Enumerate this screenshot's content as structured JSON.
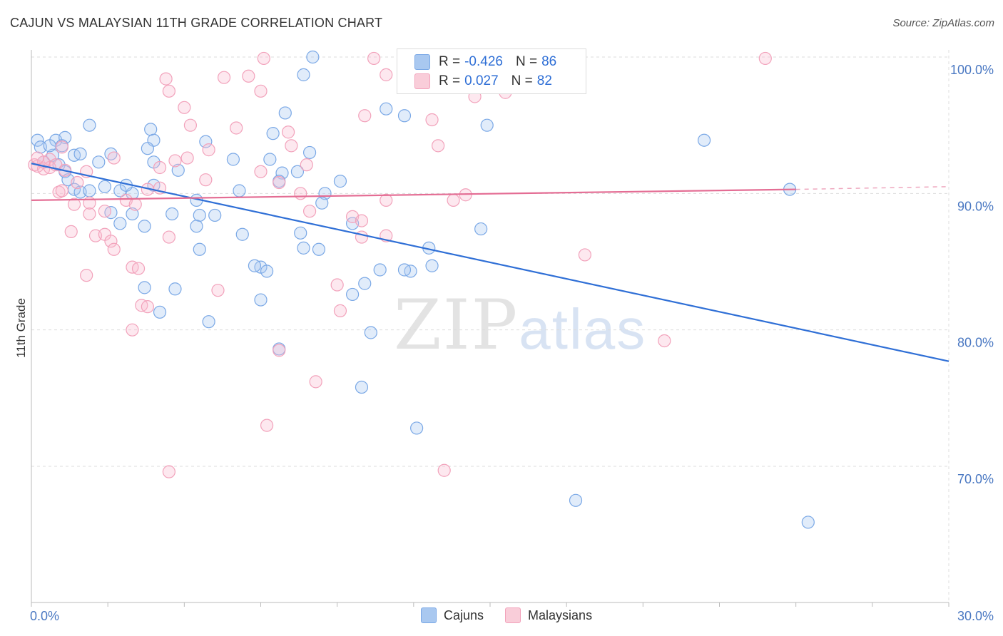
{
  "title": "CAJUN VS MALAYSIAN 11TH GRADE CORRELATION CHART",
  "source": "Source: ZipAtlas.com",
  "watermark": {
    "zip": "ZIP",
    "atlas": "atlas"
  },
  "legend": {
    "rows": [
      {
        "r_label": "R =",
        "r_value": "-0.426",
        "n_label": "N =",
        "n_value": "86",
        "color": "#a9c8f0"
      },
      {
        "r_label": "R =",
        "r_value": "0.027",
        "n_label": "N =",
        "n_value": "82",
        "color": "#f5b8ca"
      }
    ]
  },
  "bottom_legend": [
    {
      "label": "Cajuns",
      "color": "#a9c8f0"
    },
    {
      "label": "Malaysians",
      "color": "#f5b8ca"
    }
  ],
  "chart_data": {
    "type": "scatter",
    "title": "CAJUN VS MALAYSIAN 11TH GRADE CORRELATION CHART",
    "xlabel": "",
    "ylabel": "11th Grade",
    "xlim": [
      0,
      30
    ],
    "ylim": [
      61.5,
      102
    ],
    "x_tick_labels": [
      {
        "x": 0,
        "label": "0.0%"
      },
      {
        "x": 30,
        "label": "30.0%"
      }
    ],
    "y_tick_labels": [
      {
        "y": 100,
        "label": "100.0%"
      },
      {
        "y": 90,
        "label": "90.0%"
      },
      {
        "y": 80,
        "label": "80.0%"
      },
      {
        "y": 70,
        "label": "70.0%"
      }
    ],
    "grid": true,
    "series": [
      {
        "name": "Cajuns",
        "color": "#7aa8e6",
        "trend": {
          "x": [
            0,
            30
          ],
          "y": [
            92.2,
            77.7
          ],
          "color": "#2f6fd6"
        },
        "points": [
          [
            0.2,
            93.9
          ],
          [
            0.3,
            93.4
          ],
          [
            0.4,
            92.3
          ],
          [
            0.7,
            92.8
          ],
          [
            0.8,
            93.9
          ],
          [
            0.6,
            93.5
          ],
          [
            1.1,
            94.1
          ],
          [
            1.0,
            93.5
          ],
          [
            0.9,
            92.1
          ],
          [
            1.1,
            91.6
          ],
          [
            1.9,
            95.0
          ],
          [
            1.4,
            92.8
          ],
          [
            1.6,
            92.9
          ],
          [
            2.2,
            92.3
          ],
          [
            2.6,
            92.9
          ],
          [
            3.9,
            94.7
          ],
          [
            4.0,
            93.9
          ],
          [
            4.0,
            92.3
          ],
          [
            3.8,
            93.3
          ],
          [
            5.7,
            93.8
          ],
          [
            6.6,
            92.5
          ],
          [
            7.8,
            92.5
          ],
          [
            7.9,
            94.4
          ],
          [
            8.2,
            91.5
          ],
          [
            8.7,
            91.6
          ],
          [
            9.1,
            93.0
          ],
          [
            10.1,
            90.9
          ],
          [
            1.2,
            91.0
          ],
          [
            1.4,
            90.3
          ],
          [
            1.6,
            90.1
          ],
          [
            1.9,
            90.2
          ],
          [
            2.4,
            90.5
          ],
          [
            2.9,
            90.2
          ],
          [
            3.3,
            90.0
          ],
          [
            4.0,
            90.6
          ],
          [
            4.8,
            91.7
          ],
          [
            5.4,
            89.5
          ],
          [
            6.8,
            90.2
          ],
          [
            8.1,
            90.9
          ],
          [
            9.6,
            90.0
          ],
          [
            9.5,
            89.3
          ],
          [
            2.6,
            88.6
          ],
          [
            3.3,
            88.5
          ],
          [
            4.6,
            88.5
          ],
          [
            5.5,
            88.4
          ],
          [
            6.0,
            88.4
          ],
          [
            3.7,
            87.6
          ],
          [
            2.9,
            87.8
          ],
          [
            5.4,
            87.6
          ],
          [
            6.9,
            87.0
          ],
          [
            8.8,
            87.1
          ],
          [
            10.5,
            87.8
          ],
          [
            14.7,
            87.4
          ],
          [
            8.9,
            86.0
          ],
          [
            9.4,
            85.9
          ],
          [
            5.5,
            85.9
          ],
          [
            13.0,
            86.0
          ],
          [
            7.5,
            84.6
          ],
          [
            7.3,
            84.7
          ],
          [
            7.7,
            84.3
          ],
          [
            11.4,
            84.4
          ],
          [
            12.4,
            84.3
          ],
          [
            12.2,
            84.4
          ],
          [
            13.1,
            84.7
          ],
          [
            3.7,
            83.1
          ],
          [
            4.7,
            83.0
          ],
          [
            7.5,
            82.2
          ],
          [
            10.9,
            83.4
          ],
          [
            10.5,
            82.6
          ],
          [
            4.2,
            81.3
          ],
          [
            5.8,
            80.6
          ],
          [
            11.1,
            79.8
          ],
          [
            8.1,
            78.6
          ],
          [
            10.8,
            75.8
          ],
          [
            12.6,
            72.8
          ],
          [
            17.8,
            67.5
          ],
          [
            25.4,
            65.9
          ],
          [
            14.9,
            95.0
          ],
          [
            22.0,
            93.9
          ],
          [
            24.8,
            90.3
          ],
          [
            8.3,
            95.9
          ],
          [
            9.2,
            100.0
          ],
          [
            8.9,
            98.7
          ],
          [
            11.6,
            96.2
          ],
          [
            12.2,
            95.7
          ],
          [
            3.1,
            90.6
          ]
        ]
      },
      {
        "name": "Malaysians",
        "color": "#f2a2bb",
        "trend": {
          "x": [
            0,
            25
          ],
          "y": [
            89.5,
            90.3
          ],
          "color": "#e46d94"
        },
        "dashed_extension": {
          "x": [
            25,
            30
          ],
          "y": [
            90.3,
            90.5
          ]
        },
        "points": [
          [
            0.1,
            92.1
          ],
          [
            0.2,
            92.0
          ],
          [
            0.4,
            91.8
          ],
          [
            0.6,
            92.5
          ],
          [
            0.6,
            91.9
          ],
          [
            0.8,
            92.1
          ],
          [
            1.0,
            93.4
          ],
          [
            1.1,
            91.7
          ],
          [
            1.5,
            90.8
          ],
          [
            1.8,
            91.6
          ],
          [
            0.4,
            92.3
          ],
          [
            0.2,
            92.6
          ],
          [
            0.9,
            90.1
          ],
          [
            1.0,
            90.2
          ],
          [
            1.9,
            88.5
          ],
          [
            1.9,
            89.3
          ],
          [
            2.4,
            88.7
          ],
          [
            3.1,
            89.5
          ],
          [
            3.4,
            89.2
          ],
          [
            3.8,
            90.3
          ],
          [
            4.2,
            90.4
          ],
          [
            4.2,
            91.9
          ],
          [
            4.7,
            92.4
          ],
          [
            5.1,
            92.6
          ],
          [
            5.8,
            93.2
          ],
          [
            5.7,
            91.0
          ],
          [
            6.7,
            94.8
          ],
          [
            7.5,
            91.6
          ],
          [
            8.1,
            90.8
          ],
          [
            8.8,
            90.0
          ],
          [
            9.1,
            88.7
          ],
          [
            10.5,
            88.3
          ],
          [
            10.8,
            88.0
          ],
          [
            11.6,
            89.5
          ],
          [
            13.8,
            89.5
          ],
          [
            14.2,
            89.9
          ],
          [
            1.3,
            87.2
          ],
          [
            2.1,
            86.9
          ],
          [
            2.4,
            87.0
          ],
          [
            2.6,
            86.5
          ],
          [
            2.7,
            85.9
          ],
          [
            3.3,
            84.6
          ],
          [
            3.5,
            84.5
          ],
          [
            4.5,
            86.8
          ],
          [
            6.1,
            82.9
          ],
          [
            10.8,
            86.8
          ],
          [
            11.6,
            86.9
          ],
          [
            10.0,
            83.3
          ],
          [
            10.1,
            81.4
          ],
          [
            1.8,
            84.0
          ],
          [
            3.6,
            81.8
          ],
          [
            3.8,
            81.7
          ],
          [
            3.3,
            80.0
          ],
          [
            8.1,
            78.5
          ],
          [
            9.3,
            76.2
          ],
          [
            7.7,
            73.0
          ],
          [
            4.5,
            69.6
          ],
          [
            13.5,
            69.7
          ],
          [
            18.1,
            85.5
          ],
          [
            20.7,
            79.2
          ],
          [
            4.4,
            98.4
          ],
          [
            4.5,
            97.5
          ],
          [
            5.0,
            96.3
          ],
          [
            5.2,
            95.0
          ],
          [
            6.3,
            98.5
          ],
          [
            7.1,
            98.6
          ],
          [
            7.5,
            97.5
          ],
          [
            8.4,
            94.5
          ],
          [
            8.5,
            93.5
          ],
          [
            10.9,
            95.7
          ],
          [
            11.6,
            98.7
          ],
          [
            12.5,
            98.7
          ],
          [
            13.1,
            95.4
          ],
          [
            13.3,
            93.5
          ],
          [
            14.5,
            97.1
          ],
          [
            15.5,
            97.4
          ],
          [
            24.0,
            99.9
          ],
          [
            7.6,
            99.9
          ],
          [
            11.2,
            99.9
          ],
          [
            2.7,
            92.6
          ],
          [
            1.4,
            89.2
          ],
          [
            9.0,
            92.1
          ]
        ]
      }
    ]
  }
}
